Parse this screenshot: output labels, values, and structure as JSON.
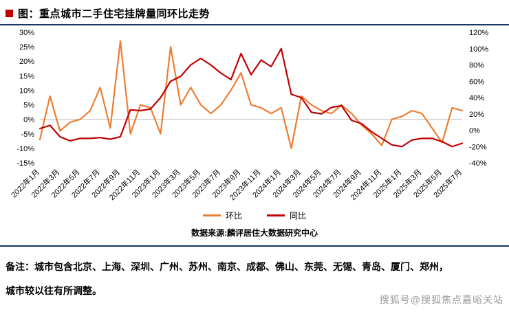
{
  "header": {
    "marker_color": "#c00000",
    "title": "图：重点城市二手住宅挂牌量同环比走势"
  },
  "source": "数据来源:麟评居住大数据研究中心",
  "note": {
    "line1": "备注：城市包含北京、上海、深圳、广州、苏州、南京、成都、佛山、东莞、无锡、青岛、厦门、郑州，",
    "line2": "城市较以往有所调整。"
  },
  "watermark": "搜狐号@搜狐焦点嘉峪关站",
  "chart_data": {
    "type": "line",
    "title": "重点城市二手住宅挂牌量同环比走势",
    "grid": false,
    "legend_position": "bottom",
    "x_label_every": 2,
    "categories": [
      "2022年1月",
      "2022年2月",
      "2022年3月",
      "2022年4月",
      "2022年5月",
      "2022年6月",
      "2022年7月",
      "2022年8月",
      "2022年9月",
      "2022年10月",
      "2022年11月",
      "2022年12月",
      "2023年1月",
      "2023年2月",
      "2023年3月",
      "2023年4月",
      "2023年5月",
      "2023年6月",
      "2023年7月",
      "2023年8月",
      "2023年9月",
      "2023年10月",
      "2023年11月",
      "2023年12月",
      "2024年1月",
      "2024年2月",
      "2024年3月",
      "2024年4月",
      "2024年5月",
      "2024年6月",
      "2024年7月",
      "2024年8月",
      "2024年9月",
      "2024年10月",
      "2024年11月",
      "2024年12月",
      "2025年1月",
      "2025年2月",
      "2025年3月",
      "2025年4月",
      "2025年5月",
      "2025年6月",
      "2025年7月"
    ],
    "left_axis": {
      "min": -15,
      "max": 30,
      "step": 5,
      "ticks": [
        "30%",
        "25%",
        "20%",
        "15%",
        "10%",
        "5%",
        "0%",
        "-5%",
        "-10%",
        "-15%"
      ]
    },
    "right_axis": {
      "min": -40,
      "max": 120,
      "step": 20,
      "ticks": [
        "120%",
        "100%",
        "80%",
        "60%",
        "40%",
        "20%",
        "0%",
        "-20%",
        "-40%"
      ]
    },
    "series": [
      {
        "name": "环比",
        "axis": "left",
        "color": "#ED7D31",
        "values": [
          -7,
          8,
          -4,
          -1,
          0,
          3,
          11,
          -3,
          27,
          -5,
          5,
          4,
          -5,
          25,
          5,
          11,
          5,
          2,
          5,
          10,
          16,
          5,
          4,
          2,
          4,
          -10,
          8,
          5,
          3,
          2,
          5,
          2,
          -2,
          -5,
          -9,
          0,
          1,
          3,
          2,
          -3,
          -8,
          4,
          3
        ]
      },
      {
        "name": "同比",
        "axis": "right",
        "color": "#C00000",
        "values": [
          2,
          6,
          -8,
          -13,
          -10,
          -10,
          -9,
          -11,
          -8,
          25,
          24,
          26,
          40,
          60,
          66,
          80,
          88,
          80,
          70,
          62,
          94,
          68,
          86,
          78,
          100,
          44,
          40,
          22,
          20,
          28,
          30,
          12,
          8,
          -2,
          -10,
          -18,
          -20,
          -12,
          -10,
          -10,
          -14,
          -20,
          -16
        ]
      }
    ]
  }
}
